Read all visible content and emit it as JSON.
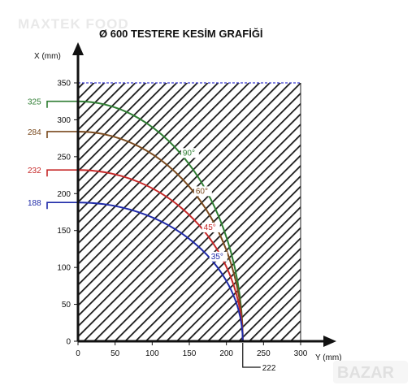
{
  "watermark": "MAXTEK FOOD",
  "corner_logo": "BAZAR",
  "chart_data": {
    "type": "line",
    "title": "Ø 600 TESTERE KESİM GRAFİĞİ",
    "xlabel": "Y (mm)",
    "ylabel": "X (mm)",
    "xlim": [
      0,
      300
    ],
    "ylim": [
      0,
      350
    ],
    "x_ticks": [
      0,
      50,
      100,
      150,
      200,
      250,
      300
    ],
    "y_ticks": [
      0,
      50,
      100,
      150,
      200,
      250,
      300,
      350
    ],
    "x_end_label": "222",
    "x_end_value": 222,
    "grid": false,
    "cutting_area": {
      "x_max": 300,
      "y_max": 350,
      "pattern": "diagonal-hatch"
    },
    "series": [
      {
        "name": "90°",
        "x_max": 222,
        "y_max": 325,
        "y_label": "325",
        "color": "#2e7d32"
      },
      {
        "name": "60°",
        "x_max": 222,
        "y_max": 284,
        "y_label": "284",
        "color": "#7a4a1e"
      },
      {
        "name": "45°",
        "x_max": 222,
        "y_max": 232,
        "y_label": "232",
        "color": "#c62828"
      },
      {
        "name": "35°",
        "x_max": 222,
        "y_max": 188,
        "y_label": "188",
        "color": "#1f2aa8"
      }
    ],
    "border_top_color": "#3a3ad0"
  }
}
